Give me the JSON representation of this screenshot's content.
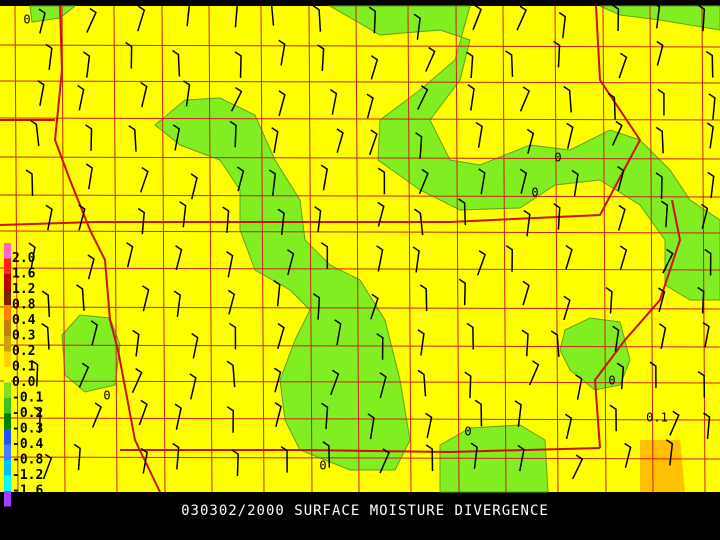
{
  "title": "030302/2000 SURFACE MOISTURE DIVERGENCE",
  "legend": {
    "labels": [
      "2.0",
      "1.6",
      "1.2",
      "0.8",
      "0.4",
      "0.3",
      "0.2",
      "0.1",
      "0.0",
      "-0.1",
      "-0.2",
      "-0.3",
      "-0.4",
      "-0.8",
      "-1.2",
      "-1.6"
    ],
    "colors": [
      "#ff66cc",
      "#ff2020",
      "#c00000",
      "#802000",
      "#ff7f00",
      "#c08000",
      "#d0a000",
      "#ffd000",
      "#ffff00",
      "#80e020",
      "#40c020",
      "#008000",
      "#2050ff",
      "#4080ff",
      "#00c0ff",
      "#00ffff",
      "#a040ff"
    ]
  },
  "contour_labels": [
    "0",
    "0",
    "0",
    "0",
    "0",
    "0",
    "0",
    "0.1"
  ]
}
